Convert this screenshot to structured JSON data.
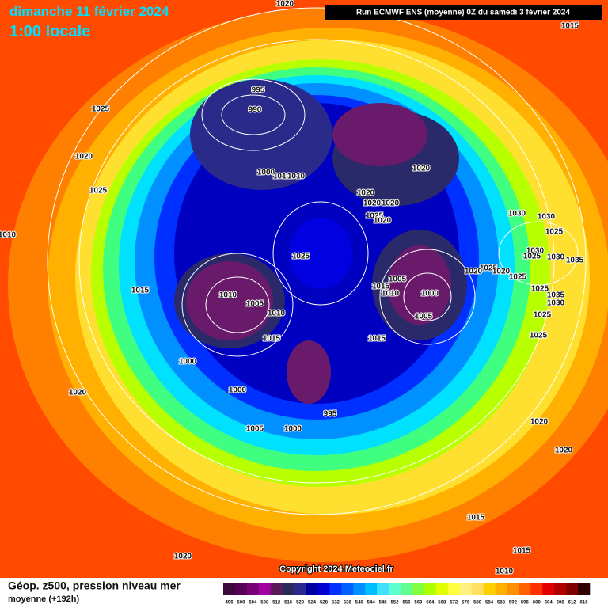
{
  "header": {
    "date": "dimanche 11 février 2024",
    "time": "1:00 locale",
    "run": "Run ECMWF ENS (moyenne) 0Z du samedi 3 février 2024"
  },
  "map": {
    "copyright": "Copyright 2024 Meteociel.fr",
    "isobar_labels": [
      "1020",
      "1015",
      "995",
      "990",
      "1025",
      "1020",
      "1025",
      "1000",
      "1010",
      "1010",
      "1020",
      "1020",
      "1020",
      "1020",
      "1025",
      "1020",
      "1030",
      "1030",
      "1025",
      "1010",
      "1025",
      "1030",
      "1025",
      "1030",
      "1035",
      "1025",
      "1020",
      "1020",
      "1025",
      "1005",
      "1015",
      "1010",
      "1000",
      "1015",
      "1010",
      "1005",
      "1010",
      "1005",
      "1025",
      "1035",
      "1030",
      "1025",
      "1025",
      "1015",
      "1015",
      "1000",
      "1000",
      "1020",
      "995",
      "1005",
      "1000",
      "1020",
      "1020",
      "1015",
      "1015",
      "1020",
      "1010"
    ]
  },
  "legend": {
    "title": "Géop. z500, pression niveau mer",
    "subtitle": "moyenne  (+192h)",
    "levels": [
      496,
      500,
      504,
      508,
      512,
      516,
      520,
      524,
      528,
      532,
      536,
      540,
      544,
      548,
      552,
      556,
      560,
      564,
      568,
      572,
      576,
      580,
      584,
      588,
      592,
      596,
      600,
      604,
      608,
      612,
      616
    ],
    "colors": [
      "#3a0a3a",
      "#550055",
      "#7a007a",
      "#a000a0",
      "#5a1a5a",
      "#2a2a5a",
      "#2a2a8a",
      "#0000a0",
      "#0000d0",
      "#0030ff",
      "#0060ff",
      "#0090ff",
      "#00c0ff",
      "#40e0ff",
      "#60ffd0",
      "#60ff90",
      "#80ff40",
      "#b0ff00",
      "#e0ff00",
      "#ffff40",
      "#fff080",
      "#ffe060",
      "#ffd000",
      "#ffb000",
      "#ff9000",
      "#ff6000",
      "#ff3000",
      "#e00000",
      "#b00000",
      "#800000",
      "#300000"
    ]
  }
}
